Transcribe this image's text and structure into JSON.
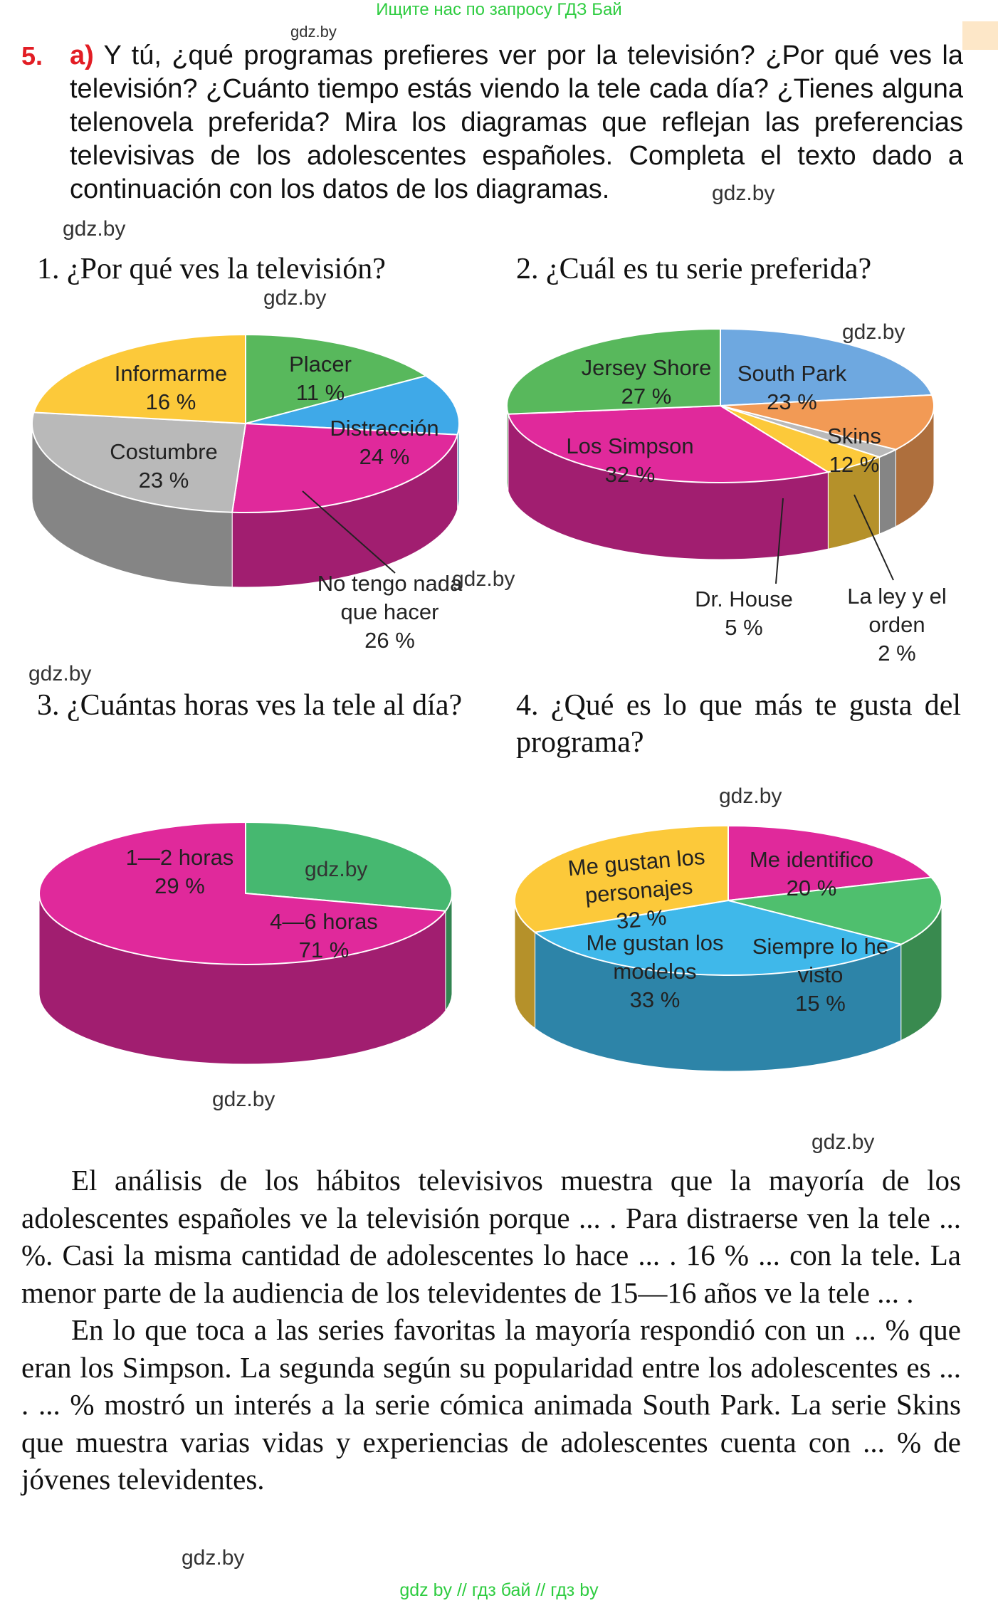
{
  "banner": "Ищите нас по запросу ГДЗ Бай",
  "watermark": "gdz.by",
  "task": {
    "number": "5.",
    "part": "a)",
    "text": "Y tú, ¿qué programas prefieres ver por la televisión? ¿Por qué ves la televisión? ¿Cuánto tiempo estás viendo la tele cada día? ¿Tienes alguna telenovela preferida? Mira los diagramas que reflejan las preferencias televisivas de los adolescentes españoles. Completa el texto dado a continuación con los datos de los diagramas."
  },
  "chart_data": [
    {
      "type": "pie",
      "title": "1. ¿Por qué ves la televisión?",
      "labels": [
        "Informarme",
        "Placer",
        "Distracción",
        "No tengo nada que hacer",
        "Costumbre"
      ],
      "values": [
        16,
        11,
        24,
        26,
        23
      ],
      "value_labels": [
        "16 %",
        "11 %",
        "24 %",
        "26 %",
        "23 %"
      ],
      "colors": [
        "#58b85c",
        "#3fa9e8",
        "#e0299b",
        "#b9b9b9",
        "#fcc93a"
      ]
    },
    {
      "type": "pie",
      "title": "2. ¿Cuál es tu serie preferida?",
      "labels": [
        "South Park",
        "Skins",
        "La ley y el orden",
        "Dr. House",
        "Los Simpson",
        "Jersey Shore"
      ],
      "values": [
        23,
        12,
        2,
        5,
        32,
        27
      ],
      "value_labels": [
        "23 %",
        "12 %",
        "2 %",
        "5 %",
        "32 %",
        "27 %"
      ],
      "colors": [
        "#6ea8e0",
        "#f29a55",
        "#b9b9b9",
        "#fcc93a",
        "#e0299b",
        "#58b85c"
      ]
    },
    {
      "type": "pie",
      "title": "3. ¿Cuántas horas ves la tele al día?",
      "labels": [
        "1—2 horas",
        "4—6 horas"
      ],
      "values": [
        29,
        71
      ],
      "value_labels": [
        "29 %",
        "71 %"
      ],
      "colors": [
        "#46b870",
        "#e0299b"
      ]
    },
    {
      "type": "pie",
      "title": "4. ¿Qué es lo que más te gusta del programa?",
      "labels": [
        "Me identifico",
        "Siempre lo he visto",
        "Me gustan los modelos",
        "Me gustan los personajes"
      ],
      "values": [
        20,
        15,
        33,
        32
      ],
      "value_labels": [
        "20 %",
        "15 %",
        "33 %",
        "32 %"
      ],
      "colors": [
        "#e0299b",
        "#4fbf6e",
        "#3fb8ea",
        "#fcc93a"
      ]
    }
  ],
  "paragraph1": "El análisis de los hábitos televisivos muestra que la mayoría de los adolescentes españoles ve la televisión porque ... . Para distraerse ven la tele ... %. Casi la misma cantidad de adolescentes lo hace ... . 16 % ... con la tele. La menor parte de la audiencia de los televidentes de 15—16 años ve la tele ... .",
  "paragraph2": "En lo que toca a las series favoritas la mayoría respondió con un ... % que eran los Simpson. La segunda según su popularidad entre los adolescentes es ... . ... % mostró un interés a la serie cómica animada South Park. La serie Skins que muestra varias vidas y experiencias de adolescentes cuenta con ... % de jóvenes televidentes.",
  "footer": "gdz by  //  гдз бай  //  гдз by"
}
